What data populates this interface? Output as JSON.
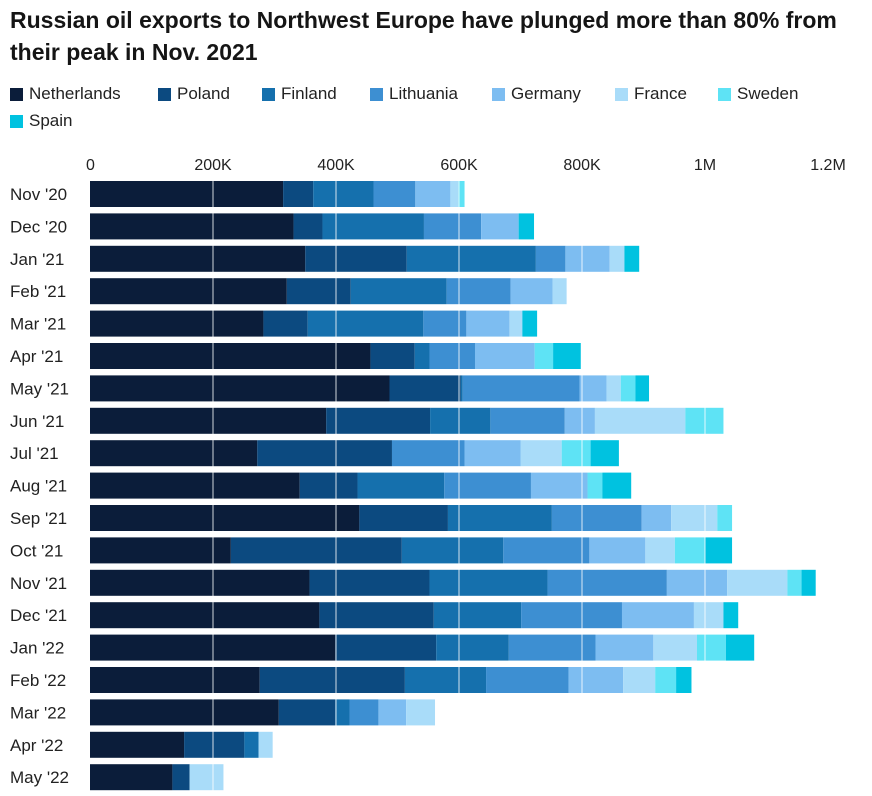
{
  "title": "Russian oil exports to Northwest Europe have plunged more than 80% from their peak in Nov. 2021",
  "chart_data": {
    "type": "bar",
    "orientation": "horizontal",
    "stacked": true,
    "title": "Russian oil exports to Northwest Europe have plunged more than 80% from their peak in Nov. 2021",
    "xlabel": "",
    "ylabel": "",
    "xlim": [
      0,
      1200000
    ],
    "x_ticks": [
      0,
      200000,
      400000,
      600000,
      800000,
      1000000,
      1200000
    ],
    "x_tick_labels": [
      "0",
      "200K",
      "400K",
      "600K",
      "800K",
      "1M",
      "1.2M"
    ],
    "grid": true,
    "legend_position": "top",
    "categories": [
      "Nov '20",
      "Dec '20",
      "Jan '21",
      "Feb '21",
      "Mar '21",
      "Apr '21",
      "May '21",
      "Jun '21",
      "Jul '21",
      "Aug '21",
      "Sep '21",
      "Oct '21",
      "Nov '21",
      "Dec '21",
      "Jan '22",
      "Feb '22",
      "Mar '22",
      "Apr '22",
      "May '22"
    ],
    "series": [
      {
        "name": "Netherlands",
        "color": "#0b1d3a",
        "values": [
          314000,
          331000,
          350000,
          320000,
          282000,
          456000,
          487000,
          384000,
          272000,
          341000,
          438000,
          229000,
          357000,
          373000,
          399000,
          276000,
          307000,
          153000,
          134000
        ]
      },
      {
        "name": "Poland",
        "color": "#0c4a80",
        "values": [
          49000,
          47000,
          165000,
          104000,
          72000,
          72000,
          116000,
          169000,
          219000,
          94000,
          144000,
          278000,
          195000,
          186000,
          164000,
          236000,
          92000,
          98000,
          28000
        ]
      },
      {
        "name": "Finland",
        "color": "#1570ad",
        "values": [
          98000,
          165000,
          210000,
          156000,
          188000,
          24000,
          3000,
          98000,
          0,
          141000,
          169000,
          165000,
          192000,
          142000,
          118000,
          132000,
          23000,
          23000,
          0
        ]
      },
      {
        "name": "Lithuania",
        "color": "#3d8fd2",
        "values": [
          68000,
          93000,
          48000,
          104000,
          70000,
          74000,
          190000,
          121000,
          118000,
          141000,
          146000,
          140000,
          194000,
          164000,
          141000,
          134000,
          47000,
          0,
          0
        ]
      },
      {
        "name": "Germany",
        "color": "#7dbdf1",
        "values": [
          57000,
          61000,
          72000,
          68000,
          70000,
          97000,
          44000,
          49000,
          91000,
          92000,
          48000,
          91000,
          98000,
          117000,
          94000,
          89000,
          45000,
          0,
          0
        ]
      },
      {
        "name": "France",
        "color": "#a9dcf9",
        "values": [
          13000,
          0,
          24000,
          23000,
          21000,
          0,
          23000,
          147000,
          67000,
          0,
          75000,
          48000,
          98000,
          48000,
          71000,
          52000,
          47000,
          23000,
          55000
        ]
      },
      {
        "name": "Sweden",
        "color": "#5ee3f5",
        "values": [
          10000,
          0,
          0,
          0,
          0,
          30000,
          24000,
          62000,
          47000,
          24000,
          24000,
          49000,
          23000,
          0,
          47000,
          34000,
          0,
          0,
          0
        ]
      },
      {
        "name": "Spain",
        "color": "#00c2e0",
        "values": [
          0,
          25000,
          24000,
          0,
          24000,
          45000,
          22000,
          0,
          46000,
          47000,
          0,
          44000,
          23000,
          24000,
          46000,
          25000,
          0,
          0,
          0
        ]
      }
    ]
  }
}
